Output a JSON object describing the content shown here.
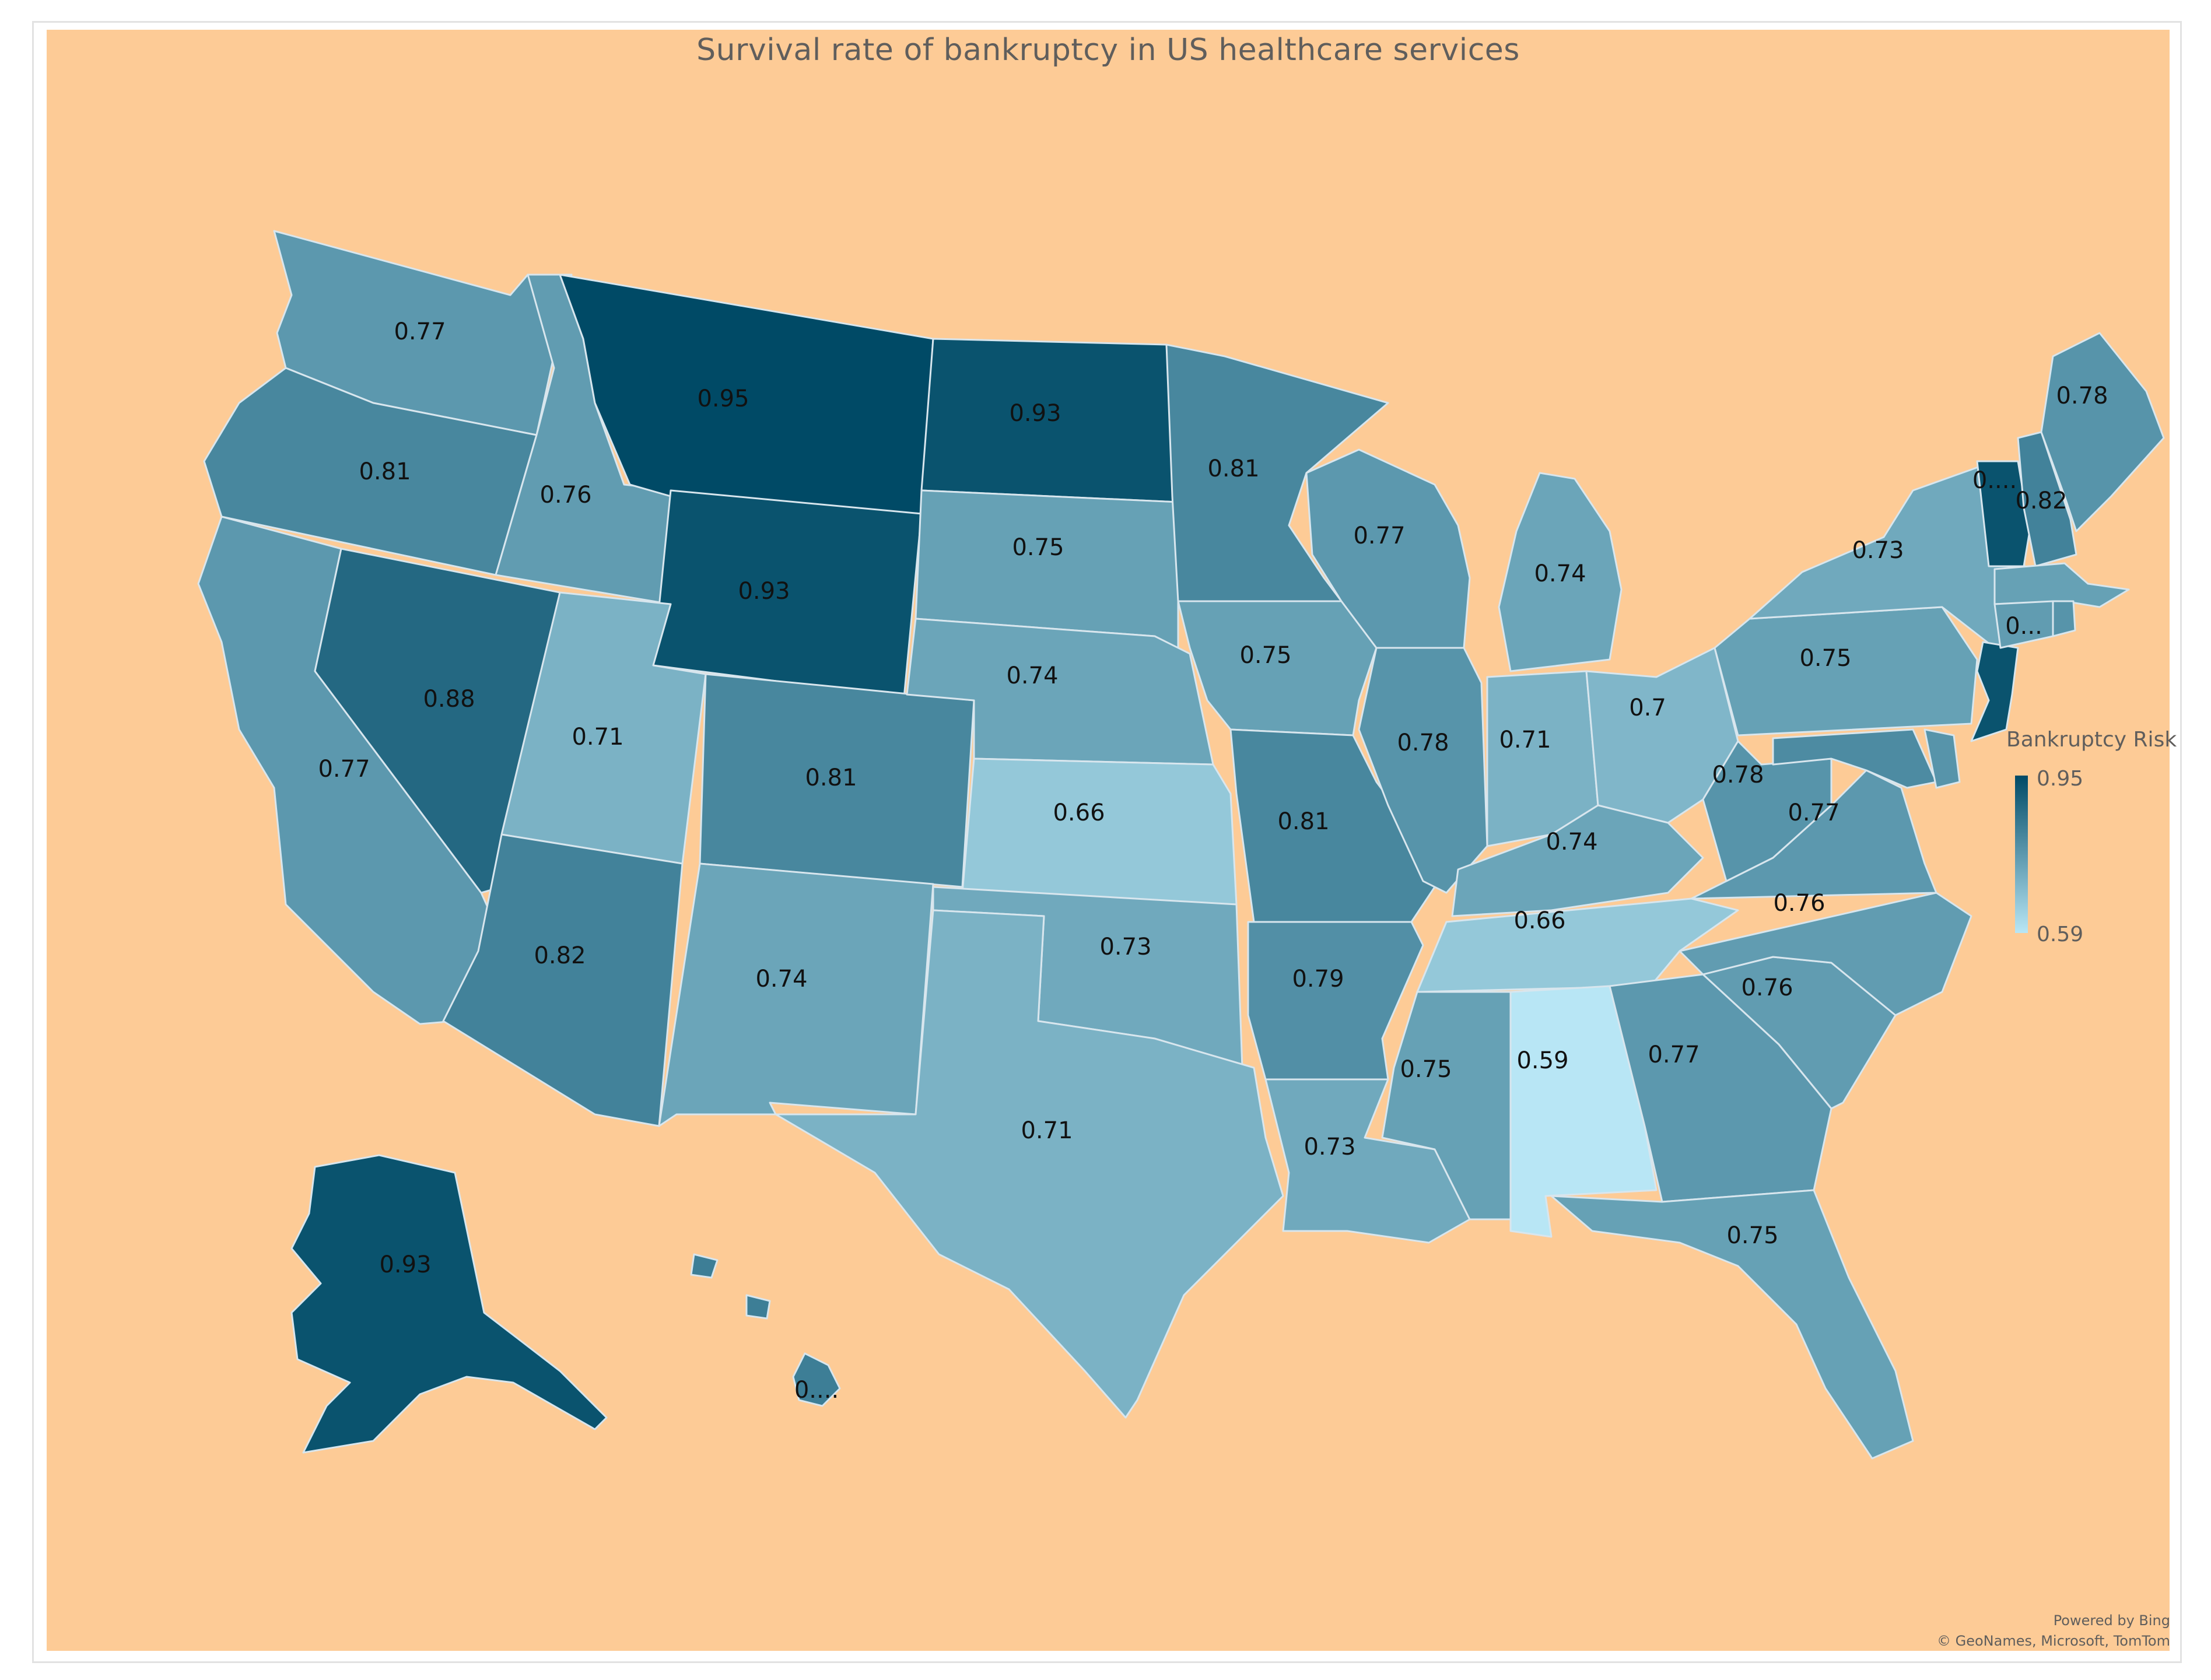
{
  "title": "Survival rate of bankruptcy in US healthcare services",
  "legend": {
    "title": "Bankruptcy Risk",
    "max": "0.95",
    "min": "0.59",
    "color_max": "#004a66",
    "color_min": "#b8e6f5",
    "max_value": 0.95,
    "min_value": 0.59
  },
  "background_color": "#fdcb96",
  "attribution": {
    "line1": "Powered by Bing",
    "line2": "© GeoNames, Microsoft, TomTom"
  },
  "states": [
    {
      "id": "WA",
      "value": 0.77,
      "label": "0.77"
    },
    {
      "id": "OR",
      "value": 0.81,
      "label": "0.81"
    },
    {
      "id": "CA",
      "value": 0.77,
      "label": "0.77"
    },
    {
      "id": "ID",
      "value": 0.76,
      "label": "0.76"
    },
    {
      "id": "NV",
      "value": 0.88,
      "label": "0.88"
    },
    {
      "id": "MT",
      "value": 0.95,
      "label": "0.95"
    },
    {
      "id": "WY",
      "value": 0.93,
      "label": "0.93"
    },
    {
      "id": "UT",
      "value": 0.71,
      "label": "0.71"
    },
    {
      "id": "AZ",
      "value": 0.82,
      "label": "0.82"
    },
    {
      "id": "CO",
      "value": 0.81,
      "label": "0.81"
    },
    {
      "id": "NM",
      "value": 0.74,
      "label": "0.74"
    },
    {
      "id": "ND",
      "value": 0.93,
      "label": "0.93"
    },
    {
      "id": "SD",
      "value": 0.75,
      "label": "0.75"
    },
    {
      "id": "NE",
      "value": 0.74,
      "label": "0.74"
    },
    {
      "id": "KS",
      "value": 0.66,
      "label": "0.66"
    },
    {
      "id": "OK",
      "value": 0.73,
      "label": "0.73"
    },
    {
      "id": "TX",
      "value": 0.71,
      "label": "0.71"
    },
    {
      "id": "MN",
      "value": 0.81,
      "label": "0.81"
    },
    {
      "id": "IA",
      "value": 0.75,
      "label": "0.75"
    },
    {
      "id": "MO",
      "value": 0.81,
      "label": "0.81"
    },
    {
      "id": "AR",
      "value": 0.79,
      "label": "0.79"
    },
    {
      "id": "LA",
      "value": 0.73,
      "label": "0.73"
    },
    {
      "id": "WI",
      "value": 0.77,
      "label": "0.77"
    },
    {
      "id": "IL",
      "value": 0.78,
      "label": "0.78"
    },
    {
      "id": "MI",
      "value": 0.74,
      "label": "0.74"
    },
    {
      "id": "IN",
      "value": 0.71,
      "label": "0.71"
    },
    {
      "id": "OH",
      "value": 0.7,
      "label": "0.7"
    },
    {
      "id": "KY",
      "value": 0.74,
      "label": "0.74"
    },
    {
      "id": "TN",
      "value": 0.66,
      "label": "0.66"
    },
    {
      "id": "MS",
      "value": 0.75,
      "label": "0.75"
    },
    {
      "id": "AL",
      "value": 0.59,
      "label": "0.59"
    },
    {
      "id": "GA",
      "value": 0.77,
      "label": "0.77"
    },
    {
      "id": "FL",
      "value": 0.75,
      "label": "0.75"
    },
    {
      "id": "SC",
      "value": 0.76,
      "label": "0.76"
    },
    {
      "id": "NC",
      "value": 0.76,
      "label": "0.76"
    },
    {
      "id": "VA",
      "value": 0.77,
      "label": "0.77"
    },
    {
      "id": "WV",
      "value": 0.78,
      "label": "0.78"
    },
    {
      "id": "PA",
      "value": 0.75,
      "label": "0.75"
    },
    {
      "id": "NY",
      "value": 0.73,
      "label": "0.73"
    },
    {
      "id": "NJ",
      "value": 0.93,
      "label": ""
    },
    {
      "id": "MD",
      "value": 0.8,
      "label": ""
    },
    {
      "id": "DE",
      "value": 0.78,
      "label": ""
    },
    {
      "id": "VT",
      "value": 0.93,
      "label": "0...."
    },
    {
      "id": "NH",
      "value": 0.82,
      "label": "0.82"
    },
    {
      "id": "ME",
      "value": 0.78,
      "label": "0.78"
    },
    {
      "id": "MA",
      "value": 0.75,
      "label": ""
    },
    {
      "id": "CT",
      "value": 0.76,
      "label": "0..."
    },
    {
      "id": "RI",
      "value": 0.78,
      "label": ""
    },
    {
      "id": "AK",
      "value": 0.93,
      "label": "0.93"
    },
    {
      "id": "HI",
      "value": 0.83,
      "label": "0...."
    }
  ]
}
